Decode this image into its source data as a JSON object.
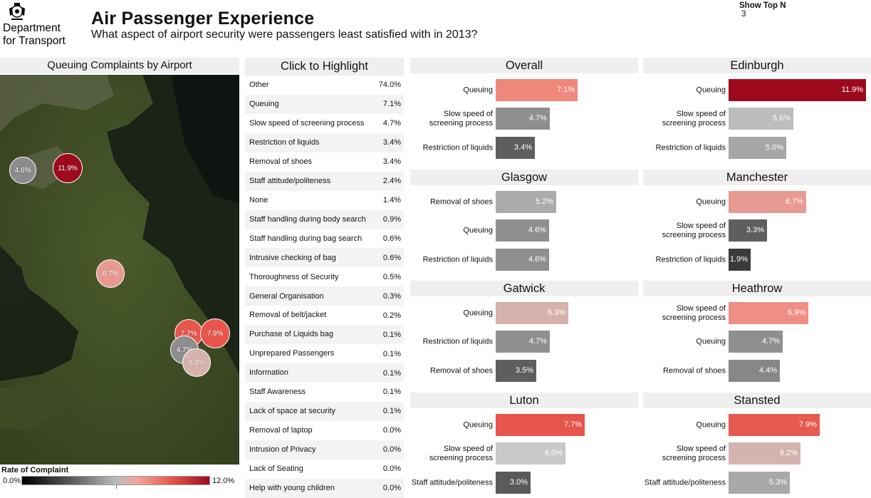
{
  "header": {
    "org_line1": "Department",
    "org_line2": "for Transport",
    "title": "Air Passenger Experience",
    "subtitle": "What aspect of airport security were passengers least satisfied with in 2013?",
    "topn_label": "Show Top N",
    "topn_value": "3"
  },
  "map": {
    "title": "Queuing Complaints by Airport",
    "legend_title": "Rate of Complaint",
    "legend_min": "0.0%",
    "legend_max": "12.0%"
  },
  "highlight": {
    "title": "Click to Highlight",
    "items": [
      {
        "label": "Other",
        "value": "74.0%"
      },
      {
        "label": "Queuing",
        "value": "7.1%"
      },
      {
        "label": "Slow speed of screening process",
        "value": "4.7%"
      },
      {
        "label": "Restriction of liquids",
        "value": "3.4%"
      },
      {
        "label": "Removal of shoes",
        "value": "3.4%"
      },
      {
        "label": "Staff attitude/politeness",
        "value": "2.4%"
      },
      {
        "label": "None",
        "value": "1.4%"
      },
      {
        "label": "Staff handling during body search",
        "value": "0.9%"
      },
      {
        "label": "Staff handling during bag search",
        "value": "0.6%"
      },
      {
        "label": "Intrusive checking of bag",
        "value": "0.6%"
      },
      {
        "label": "Thoroughness of Security",
        "value": "0.5%"
      },
      {
        "label": "General Organisation",
        "value": "0.3%"
      },
      {
        "label": "Removal of belt/jacket",
        "value": "0.2%"
      },
      {
        "label": "Purchase of Liquids bag",
        "value": "0.1%"
      },
      {
        "label": "Unprepared Passengers",
        "value": "0.1%"
      },
      {
        "label": "Information",
        "value": "0.1%"
      },
      {
        "label": "Staff Awareness",
        "value": "0.1%"
      },
      {
        "label": "Lack of space at security",
        "value": "0.1%"
      },
      {
        "label": "Removal of laptop",
        "value": "0.0%"
      },
      {
        "label": "Intrusion of Privacy",
        "value": "0.0%"
      },
      {
        "label": "Lack of Seating",
        "value": "0.0%"
      },
      {
        "label": "Help with young children",
        "value": "0.0%"
      }
    ]
  },
  "chart_data": [
    {
      "type": "bubble-map",
      "title": "Queuing Complaints by Airport",
      "points": [
        {
          "label": "4.6%",
          "value": 4.6,
          "color": "#8c8c8c"
        },
        {
          "label": "11.9%",
          "value": 11.9,
          "color": "#9d0a1e"
        },
        {
          "label": "6.7%",
          "value": 6.7,
          "color": "#e89a92"
        },
        {
          "label": "7.7%",
          "value": 7.7,
          "color": "#e8554c"
        },
        {
          "label": "7.9%",
          "value": 7.9,
          "color": "#e8554c"
        },
        {
          "label": "4.7%",
          "value": 4.7,
          "color": "#8e8e8e"
        },
        {
          "label": "6.3%",
          "value": 6.3,
          "color": "#d7b2ad"
        }
      ]
    },
    {
      "type": "bar",
      "title": "Overall",
      "categories": [
        "Queuing",
        "Slow speed of screening process",
        "Restriction of liquids"
      ],
      "values": [
        7.1,
        4.7,
        3.4
      ],
      "labels": [
        "7.1%",
        "4.7%",
        "3.4%"
      ],
      "colors": [
        "#f0877c",
        "#8f8f8f",
        "#5e5e5e"
      ]
    },
    {
      "type": "bar",
      "title": "Edinburgh",
      "categories": [
        "Queuing",
        "Slow speed of screening process",
        "Restriction of liquids"
      ],
      "values": [
        11.9,
        5.6,
        5.0
      ],
      "labels": [
        "11.9%",
        "5.6%",
        "5.0%"
      ],
      "colors": [
        "#9d0a1e",
        "#bcbcbc",
        "#a6a6a6"
      ]
    },
    {
      "type": "bar",
      "title": "Glasgow",
      "categories": [
        "Removal of shoes",
        "Queuing",
        "Restriction of liquids"
      ],
      "values": [
        5.2,
        4.6,
        4.6
      ],
      "labels": [
        "5.2%",
        "4.6%",
        "4.6%"
      ],
      "colors": [
        "#ababab",
        "#8f8f8f",
        "#8f8f8f"
      ]
    },
    {
      "type": "bar",
      "title": "Manchester",
      "categories": [
        "Queuing",
        "Slow speed of screening process",
        "Restriction of liquids"
      ],
      "values": [
        6.7,
        3.3,
        1.9
      ],
      "labels": [
        "6.7%",
        "3.3%",
        "1.9%"
      ],
      "colors": [
        "#e89a92",
        "#5e5e5e",
        "#3a3a3a"
      ]
    },
    {
      "type": "bar",
      "title": "Gatwick",
      "categories": [
        "Queuing",
        "Restriction of liquids",
        "Removal of shoes"
      ],
      "values": [
        6.3,
        4.7,
        3.5
      ],
      "labels": [
        "6.3%",
        "4.7%",
        "3.5%"
      ],
      "colors": [
        "#d7b2ad",
        "#8f8f8f",
        "#5e5e5e"
      ]
    },
    {
      "type": "bar",
      "title": "Heathrow",
      "categories": [
        "Slow speed of screening process",
        "Queuing",
        "Removal of shoes"
      ],
      "values": [
        6.9,
        4.7,
        4.4
      ],
      "labels": [
        "6.9%",
        "4.7%",
        "4.4%"
      ],
      "colors": [
        "#ef8e84",
        "#8f8f8f",
        "#878787"
      ]
    },
    {
      "type": "bar",
      "title": "Luton",
      "categories": [
        "Queuing",
        "Slow speed of screening process",
        "Staff attitude/politeness"
      ],
      "values": [
        7.7,
        6.0,
        3.0
      ],
      "labels": [
        "7.7%",
        "6.0%",
        "3.0%"
      ],
      "colors": [
        "#e8554c",
        "#c9c9c9",
        "#5a5a5a"
      ]
    },
    {
      "type": "bar",
      "title": "Stansted",
      "categories": [
        "Queuing",
        "Slow speed of screening process",
        "Staff attitude/politeness"
      ],
      "values": [
        7.9,
        6.2,
        5.3
      ],
      "labels": [
        "7.9%",
        "6.2%",
        "5.3%"
      ],
      "colors": [
        "#e65a50",
        "#d4b4b0",
        "#a8a8a8"
      ]
    }
  ]
}
